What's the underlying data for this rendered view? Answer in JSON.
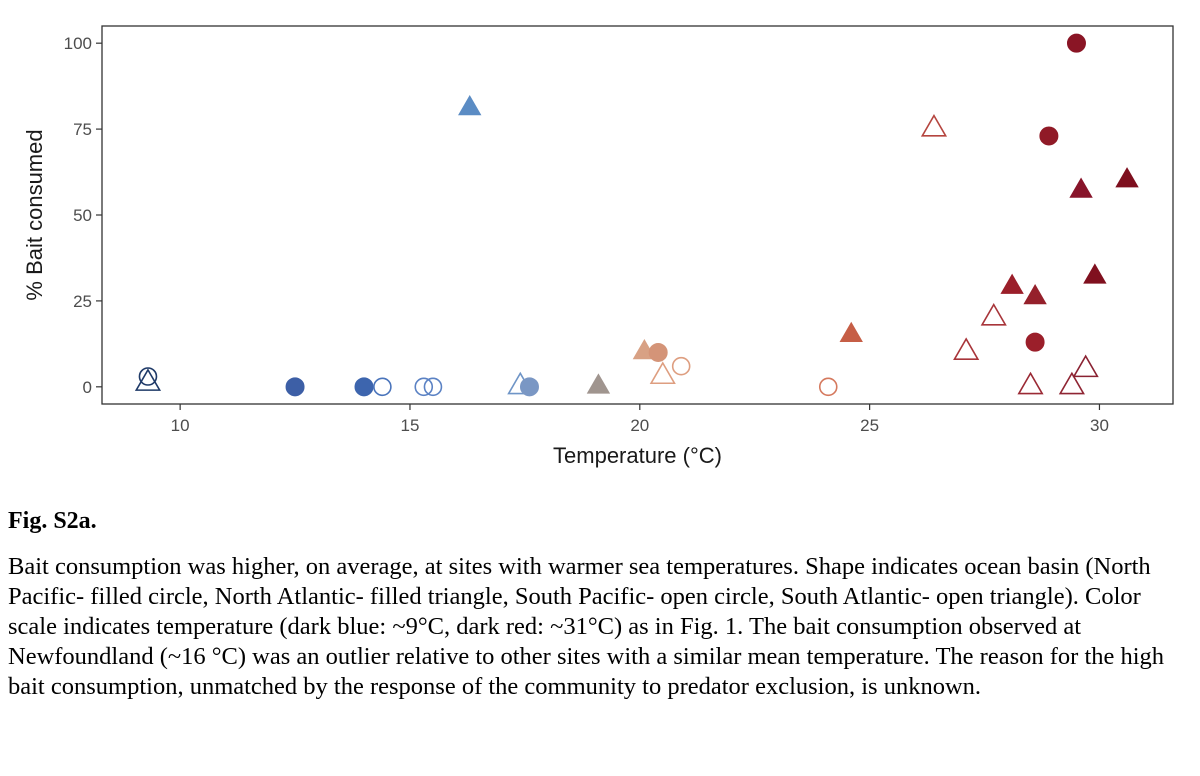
{
  "chart_data": {
    "type": "scatter",
    "title": "",
    "xlabel": "Temperature (°C)",
    "ylabel": "% Bait consumed",
    "xlim": [
      8.3,
      31.6
    ],
    "ylim": [
      -5,
      105
    ],
    "xticks": [
      10,
      15,
      20,
      25,
      30
    ],
    "yticks": [
      0,
      25,
      50,
      75,
      100
    ],
    "grid": false,
    "legend": "none",
    "color_scale": {
      "low": {
        "value": 9,
        "color": "#1f3a68"
      },
      "mid": {
        "value": 20,
        "color": "#a89a95"
      },
      "high": {
        "value": 31,
        "color": "#7e0f1e"
      }
    },
    "points": [
      {
        "x": 9.3,
        "y": 3,
        "shape": "open-circle",
        "color": "#1f3a68"
      },
      {
        "x": 9.3,
        "y": 1,
        "shape": "open-triangle",
        "color": "#1f3a68"
      },
      {
        "x": 12.5,
        "y": 0,
        "shape": "filled-circle",
        "color": "#3d5fa6"
      },
      {
        "x": 14.0,
        "y": 0,
        "shape": "filled-circle",
        "color": "#3d65ae"
      },
      {
        "x": 14.4,
        "y": 0,
        "shape": "open-circle",
        "color": "#4a74bb"
      },
      {
        "x": 15.3,
        "y": 0,
        "shape": "open-circle",
        "color": "#5b82c4"
      },
      {
        "x": 15.5,
        "y": 0,
        "shape": "open-circle",
        "color": "#5b82c4"
      },
      {
        "x": 16.3,
        "y": 81,
        "shape": "filled-triangle",
        "color": "#5b8cc4"
      },
      {
        "x": 17.4,
        "y": 0,
        "shape": "open-triangle",
        "color": "#6f95c7"
      },
      {
        "x": 17.6,
        "y": 0,
        "shape": "filled-circle",
        "color": "#7a97c4"
      },
      {
        "x": 19.1,
        "y": 0,
        "shape": "filled-triangle",
        "color": "#a0958f"
      },
      {
        "x": 20.1,
        "y": 10,
        "shape": "filled-triangle",
        "color": "#d8a184"
      },
      {
        "x": 20.4,
        "y": 10,
        "shape": "filled-circle",
        "color": "#d49478"
      },
      {
        "x": 20.5,
        "y": 3,
        "shape": "open-triangle",
        "color": "#de9e80"
      },
      {
        "x": 20.9,
        "y": 6,
        "shape": "open-circle",
        "color": "#de9e80"
      },
      {
        "x": 24.1,
        "y": 0,
        "shape": "open-circle",
        "color": "#d5795e"
      },
      {
        "x": 24.6,
        "y": 15,
        "shape": "filled-triangle",
        "color": "#c65e46"
      },
      {
        "x": 26.4,
        "y": 75,
        "shape": "open-triangle",
        "color": "#b5453f"
      },
      {
        "x": 27.1,
        "y": 10,
        "shape": "open-triangle",
        "color": "#a8353a"
      },
      {
        "x": 27.7,
        "y": 20,
        "shape": "open-triangle",
        "color": "#a8353a"
      },
      {
        "x": 28.1,
        "y": 29,
        "shape": "filled-triangle",
        "color": "#9b1f2a"
      },
      {
        "x": 28.5,
        "y": 0,
        "shape": "open-triangle",
        "color": "#9b2a35"
      },
      {
        "x": 28.6,
        "y": 13,
        "shape": "filled-circle",
        "color": "#9b1f2a"
      },
      {
        "x": 28.6,
        "y": 26,
        "shape": "filled-triangle",
        "color": "#95202b"
      },
      {
        "x": 28.9,
        "y": 73,
        "shape": "filled-circle",
        "color": "#901a27"
      },
      {
        "x": 29.4,
        "y": 0,
        "shape": "open-triangle",
        "color": "#8f2533"
      },
      {
        "x": 29.5,
        "y": 100,
        "shape": "filled-circle",
        "color": "#8a1525"
      },
      {
        "x": 29.6,
        "y": 57,
        "shape": "filled-triangle",
        "color": "#88142a"
      },
      {
        "x": 29.7,
        "y": 5,
        "shape": "open-triangle",
        "color": "#8a2232"
      },
      {
        "x": 29.9,
        "y": 32,
        "shape": "filled-triangle",
        "color": "#80101f"
      },
      {
        "x": 30.6,
        "y": 60,
        "shape": "filled-triangle",
        "color": "#7e0f1e"
      }
    ]
  },
  "caption": {
    "label": "Fig. S2a.",
    "text": "Bait consumption was higher, on average, at sites with warmer sea temperatures. Shape indicates ocean basin (North Pacific- filled circle, North Atlantic- filled triangle, South Pacific- open circle, South Atlantic- open triangle).  Color scale indicates temperature (dark blue: ~9°C, dark red: ~31°C) as in Fig. 1. The bait consumption observed at Newfoundland (~16 °C) was an outlier relative to other sites with a similar mean temperature. The reason for the high bait consumption, unmatched by the response of the community to predator exclusion, is unknown."
  }
}
